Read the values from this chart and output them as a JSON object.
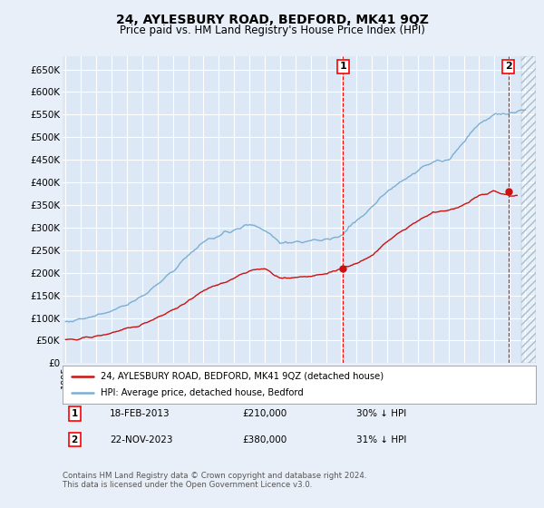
{
  "title": "24, AYLESBURY ROAD, BEDFORD, MK41 9QZ",
  "subtitle": "Price paid vs. HM Land Registry's House Price Index (HPI)",
  "ylim": [
    0,
    680000
  ],
  "yticks": [
    0,
    50000,
    100000,
    150000,
    200000,
    250000,
    300000,
    350000,
    400000,
    450000,
    500000,
    550000,
    600000,
    650000
  ],
  "xlim_start": 1995.0,
  "xlim_end": 2025.5,
  "background_color": "#e8eff8",
  "plot_bg": "#dce8f5",
  "grid_color": "#ffffff",
  "hpi_color": "#7aafd4",
  "price_color": "#cc1111",
  "sale1_year": 2013.12,
  "sale1_price": 210000,
  "sale2_year": 2023.9,
  "sale2_price": 380000,
  "legend_line1": "24, AYLESBURY ROAD, BEDFORD, MK41 9QZ (detached house)",
  "legend_line2": "HPI: Average price, detached house, Bedford",
  "ann1_date": "18-FEB-2013",
  "ann1_price": "£210,000",
  "ann1_hpi": "30% ↓ HPI",
  "ann2_date": "22-NOV-2023",
  "ann2_price": "£380,000",
  "ann2_hpi": "31% ↓ HPI",
  "footer": "Contains HM Land Registry data © Crown copyright and database right 2024.\nThis data is licensed under the Open Government Licence v3.0.",
  "future_start": 2024.75,
  "hpi_anchors_x": [
    1995,
    1996,
    1997,
    1998,
    1999,
    2000,
    2001,
    2002,
    2003,
    2004,
    2005,
    2006,
    2007,
    2008,
    2009,
    2010,
    2011,
    2012,
    2013,
    2014,
    2015,
    2016,
    2017,
    2018,
    2019,
    2020,
    2021,
    2022,
    2023,
    2024,
    2025
  ],
  "hpi_anchors_y": [
    92000,
    97000,
    105000,
    115000,
    130000,
    148000,
    175000,
    205000,
    240000,
    268000,
    283000,
    295000,
    308000,
    295000,
    265000,
    268000,
    272000,
    272000,
    285000,
    315000,
    345000,
    380000,
    405000,
    425000,
    445000,
    450000,
    490000,
    530000,
    548000,
    555000,
    560000
  ],
  "price_anchors_x": [
    1995,
    1996,
    1997,
    1998,
    1999,
    2000,
    2001,
    2002,
    2003,
    2004,
    2005,
    2006,
    2007,
    2008,
    2009,
    2010,
    2011,
    2012,
    2013,
    2014,
    2015,
    2016,
    2017,
    2018,
    2019,
    2020,
    2021,
    2022,
    2023,
    2024,
    2025
  ],
  "price_anchors_y": [
    52000,
    55000,
    60000,
    67000,
    76000,
    86000,
    100000,
    118000,
    138000,
    160000,
    175000,
    188000,
    205000,
    210000,
    188000,
    190000,
    193000,
    198000,
    210000,
    220000,
    240000,
    268000,
    295000,
    315000,
    335000,
    338000,
    350000,
    370000,
    380000,
    370000,
    375000
  ]
}
